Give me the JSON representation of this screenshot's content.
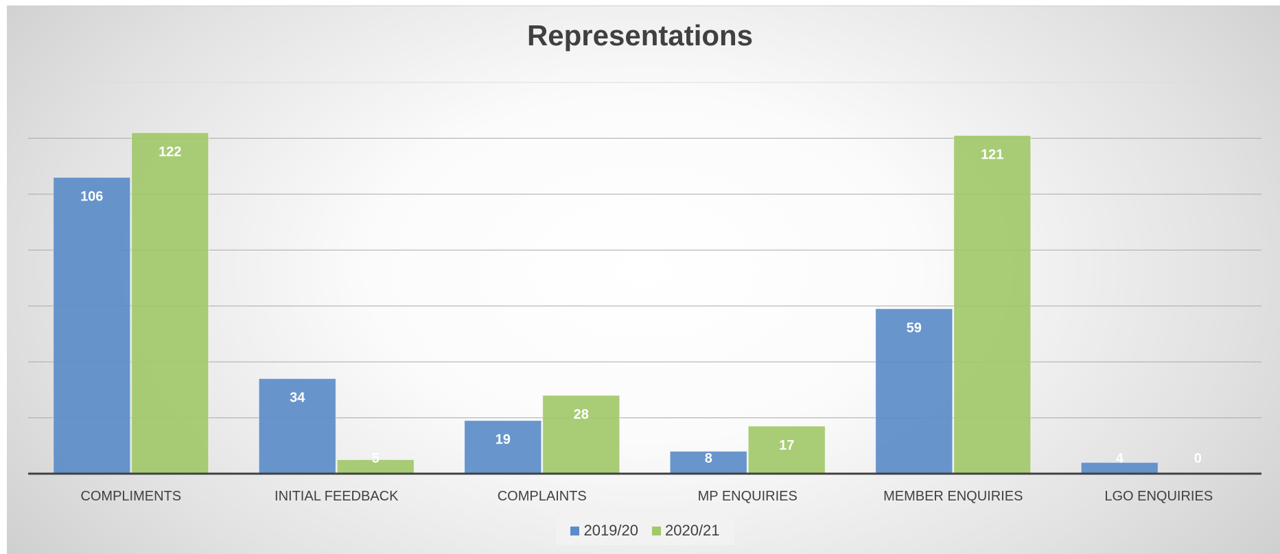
{
  "chart_data": {
    "type": "bar",
    "title": "Representations",
    "xlabel": "",
    "ylabel": "",
    "categories": [
      "COMPLIMENTS",
      "INITIAL FEEDBACK",
      "COMPLAINTS",
      "MP ENQUIRIES",
      "MEMBER ENQUIRIES",
      "LGO ENQUIRIES"
    ],
    "series": [
      {
        "name": "2019/20",
        "values": [
          106,
          34,
          19,
          8,
          59,
          4
        ],
        "color": "#5b8cc8"
      },
      {
        "name": "2020/21",
        "values": [
          122,
          5,
          28,
          17,
          121,
          0
        ],
        "color": "#a2c86a"
      }
    ],
    "ylim": [
      0,
      140
    ],
    "grid": true,
    "data_labels": true,
    "legend_position": "bottom"
  }
}
